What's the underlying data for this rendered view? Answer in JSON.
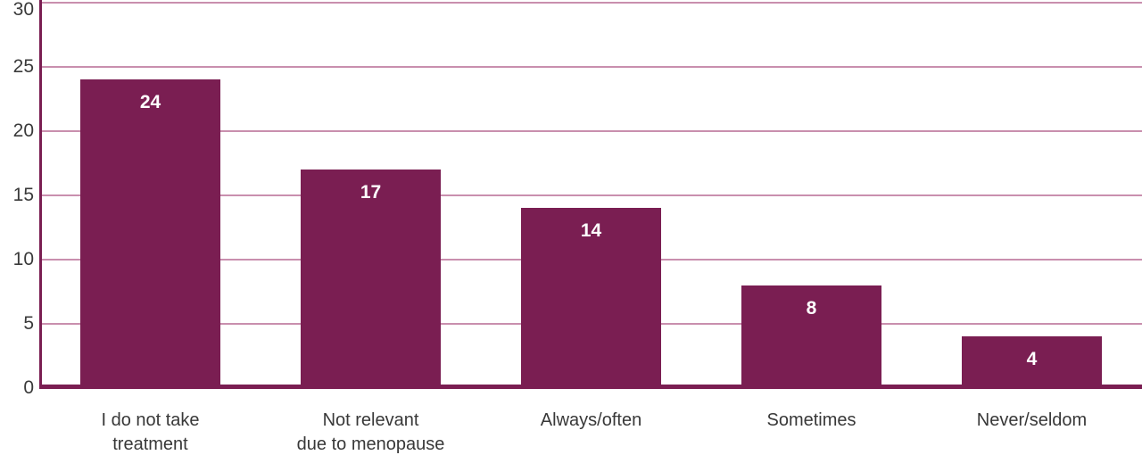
{
  "chart_data": {
    "type": "bar",
    "categories": [
      "I do not take\ntreatment",
      "Not relevant\ndue to menopause",
      "Always/often",
      "Sometimes",
      "Never/seldom"
    ],
    "values": [
      24,
      17,
      14,
      8,
      4
    ],
    "value_labels": [
      "24",
      "17",
      "14",
      "8",
      "4"
    ],
    "ytick_labels": [
      "0",
      "5",
      "10",
      "15",
      "20",
      "25",
      "30"
    ],
    "yticks": [
      0,
      5,
      10,
      15,
      20,
      25,
      30
    ],
    "title": "",
    "xlabel": "",
    "ylabel": "",
    "ylim": [
      0,
      30
    ],
    "grid": true,
    "legend": false,
    "colors": {
      "bar": "#7a1e52",
      "gridline": "#c98fae",
      "axis": "#7a1e52",
      "tick_text": "#3a3a3a",
      "value_text": "#ffffff",
      "background": "#ffffff"
    }
  }
}
